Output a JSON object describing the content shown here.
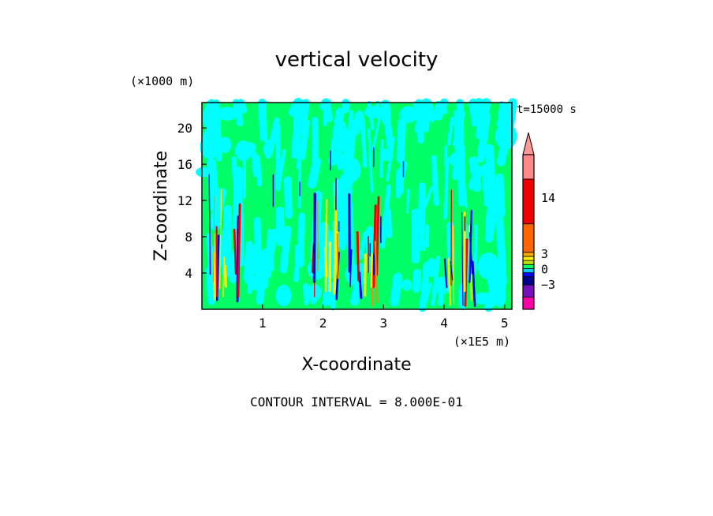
{
  "chart_data": {
    "type": "heatmap",
    "title": "vertical velocity",
    "xlabel": "X-coordinate",
    "ylabel": "Z-coordinate",
    "x_unit": "(×1E5 m)",
    "y_unit": "(×1000 m)",
    "time_label": "t=15000 s",
    "footer": "CONTOUR INTERVAL = 8.000E-01",
    "xlim": [
      0,
      5.12
    ],
    "ylim": [
      0,
      22.8
    ],
    "x_ticks": [
      "1",
      "2",
      "3",
      "4",
      "5"
    ],
    "x_tick_values": [
      1,
      2,
      3,
      4,
      5
    ],
    "y_ticks": [
      "4",
      "8",
      "12",
      "16",
      "20"
    ],
    "y_tick_values": [
      4,
      8,
      12,
      16,
      20
    ],
    "background_color": "#00ff66",
    "field_palette": [
      "#00ff66",
      "#00ffff",
      "#0000dd",
      "#ffee00",
      "#ff8800",
      "#ee0000"
    ],
    "updraft_columns_x": [
      0.4,
      2.1,
      2.7,
      4.3
    ],
    "colorbar": {
      "labels": [
        "14",
        "3",
        "0",
        "−3"
      ],
      "label_values": [
        14,
        3,
        0,
        -3
      ],
      "bands": [
        {
          "color": "#ff00aa",
          "from": -8.0,
          "to": -5.6
        },
        {
          "color": "#7711bb",
          "from": -5.6,
          "to": -3.2
        },
        {
          "color": "#00008b",
          "from": -3.2,
          "to": -1.6
        },
        {
          "color": "#0000ff",
          "from": -1.6,
          "to": -0.8
        },
        {
          "color": "#00ccff",
          "from": -0.8,
          "to": 0.0
        },
        {
          "color": "#00ff66",
          "from": 0.0,
          "to": 0.8
        },
        {
          "color": "#bbdd00",
          "from": 0.8,
          "to": 1.6
        },
        {
          "color": "#ffee00",
          "from": 1.6,
          "to": 2.4
        },
        {
          "color": "#ffaa00",
          "from": 2.4,
          "to": 3.2
        },
        {
          "color": "#ff6600",
          "from": 3.2,
          "to": 8.8
        },
        {
          "color": "#ee0000",
          "from": 8.8,
          "to": 17.6
        },
        {
          "color": "#ff8888",
          "from": 17.6,
          "to": 22.4
        }
      ],
      "extend_color": "#ff9999"
    }
  }
}
